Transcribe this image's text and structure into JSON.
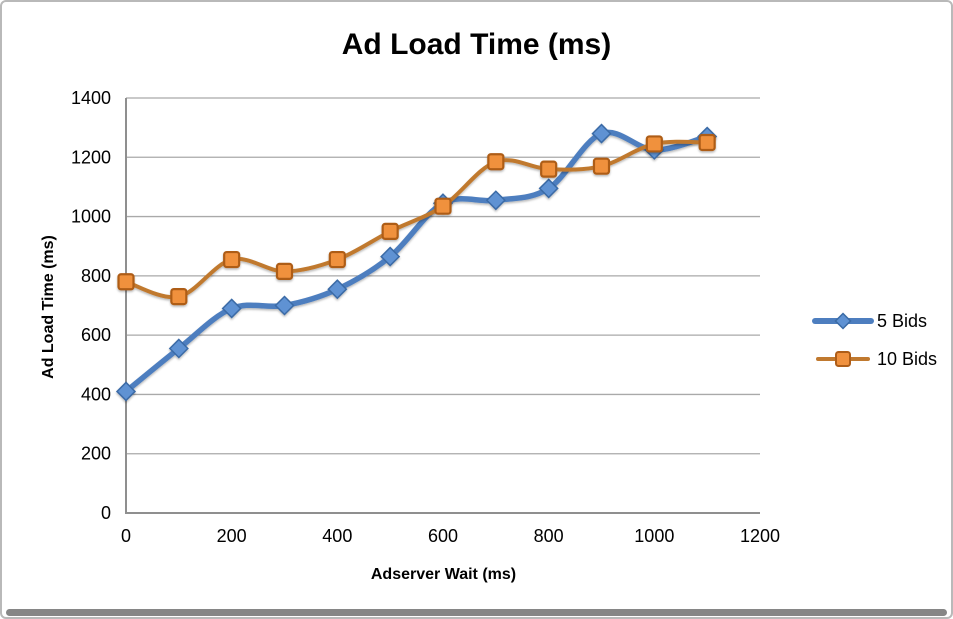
{
  "chart_data": {
    "type": "line",
    "title": "Ad Load Time (ms)",
    "xlabel": "Adserver Wait (ms)",
    "ylabel": "Ad Load Time (ms)",
    "x": [
      0,
      100,
      200,
      300,
      400,
      500,
      600,
      700,
      800,
      900,
      1000,
      1100
    ],
    "series": [
      {
        "name": "5 Bids",
        "marker": "diamond",
        "line_color": "#4d7ebf",
        "marker_fill": "#5f92d3",
        "marker_stroke": "#3a6ba6",
        "values": [
          410,
          555,
          690,
          700,
          755,
          865,
          1045,
          1055,
          1095,
          1280,
          1225,
          1270
        ]
      },
      {
        "name": "10 Bids",
        "marker": "square",
        "line_color": "#c0792f",
        "marker_fill": "#f0913e",
        "marker_stroke": "#ae5d18",
        "values": [
          780,
          730,
          855,
          815,
          855,
          950,
          1035,
          1185,
          1160,
          1170,
          1245,
          1250
        ]
      }
    ],
    "xlim": [
      0,
      1200
    ],
    "ylim": [
      0,
      1400
    ],
    "x_ticks": [
      0,
      200,
      400,
      600,
      800,
      1000,
      1200
    ],
    "y_ticks": [
      0,
      200,
      400,
      600,
      800,
      1000,
      1200,
      1400
    ],
    "grid": "horizontal",
    "legend_position": "right",
    "colors": {
      "grid": "#a9a9a9",
      "axis": "#8f8f8f",
      "tick_text": "#000000"
    }
  }
}
